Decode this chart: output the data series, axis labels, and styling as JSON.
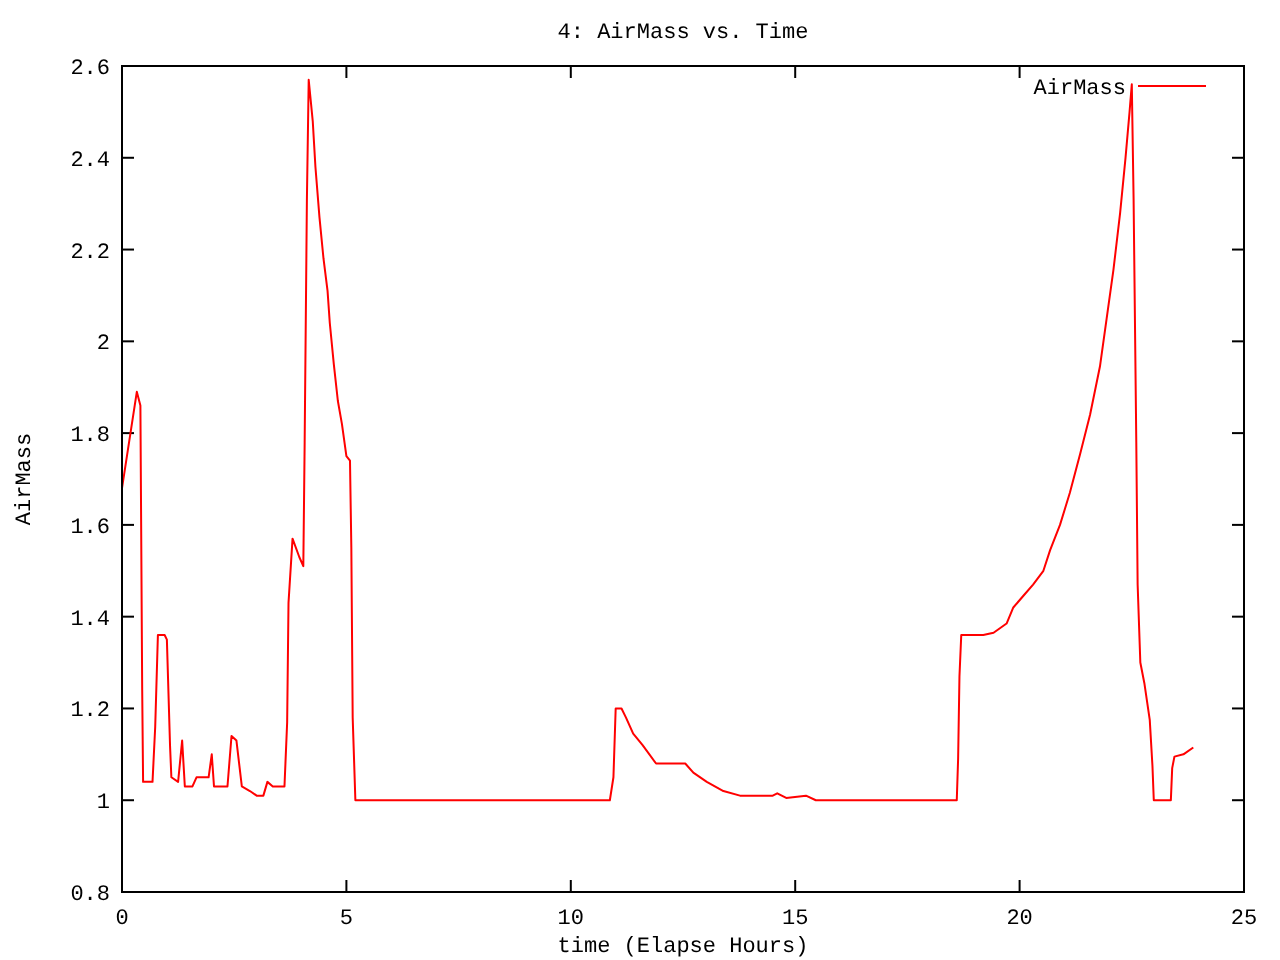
{
  "chart_data": {
    "type": "line",
    "title": "4: AirMass vs. Time",
    "xlabel": "time (Elapse Hours)",
    "ylabel": "AirMass",
    "xlim": [
      0,
      25
    ],
    "xticks": [
      0,
      5,
      10,
      15,
      20,
      25
    ],
    "ylim": [
      0.8,
      2.6
    ],
    "yticks": [
      0.8,
      1,
      1.2,
      1.4,
      1.6,
      1.8,
      2,
      2.2,
      2.4,
      2.6
    ],
    "grid": false,
    "legend": "top right",
    "marker": "none",
    "line_style": "solid",
    "series": [
      {
        "name": "AirMass",
        "color": "#ff0000",
        "x": [
          0,
          0.33,
          0.41,
          0.45,
          0.47,
          0.5,
          0.68,
          0.74,
          0.8,
          0.95,
          1.0,
          1.07,
          1.1,
          1.25,
          1.34,
          1.4,
          1.57,
          1.66,
          1.93,
          2.0,
          2.05,
          2.35,
          2.44,
          2.55,
          2.61,
          2.67,
          2.85,
          3.0,
          3.15,
          3.24,
          3.36,
          3.62,
          3.68,
          3.71,
          3.8,
          3.95,
          4.04,
          4.07,
          4.12,
          4.16,
          4.25,
          4.31,
          4.4,
          4.49,
          4.58,
          4.63,
          4.72,
          4.81,
          4.9,
          5.0,
          5.08,
          5.11,
          5.14,
          5.2,
          10.87,
          10.95,
          11.0,
          11.13,
          11.23,
          11.39,
          11.6,
          11.9,
          12.55,
          12.73,
          13.03,
          13.4,
          13.77,
          14.5,
          14.6,
          14.8,
          15.24,
          15.46,
          18.6,
          18.63,
          18.66,
          18.7,
          19.19,
          19.42,
          19.71,
          19.86,
          20.08,
          20.3,
          20.53,
          20.68,
          20.9,
          21.12,
          21.35,
          21.57,
          21.79,
          21.94,
          22.09,
          22.24,
          22.36,
          22.45,
          22.5,
          22.54,
          22.6,
          22.63,
          22.69,
          22.78,
          22.9,
          22.96,
          22.99,
          23.37,
          23.4,
          23.45,
          23.65,
          23.87
        ],
        "values": [
          1.68,
          1.89,
          1.86,
          1.24,
          1.04,
          1.04,
          1.04,
          1.16,
          1.36,
          1.36,
          1.35,
          1.12,
          1.05,
          1.04,
          1.13,
          1.03,
          1.03,
          1.05,
          1.05,
          1.1,
          1.03,
          1.03,
          1.14,
          1.13,
          1.08,
          1.03,
          1.02,
          1.01,
          1.01,
          1.04,
          1.03,
          1.03,
          1.17,
          1.43,
          1.57,
          1.53,
          1.51,
          1.78,
          2.31,
          2.57,
          2.48,
          2.38,
          2.27,
          2.18,
          2.11,
          2.04,
          1.95,
          1.87,
          1.82,
          1.75,
          1.74,
          1.55,
          1.18,
          1.0,
          1.0,
          1.05,
          1.2,
          1.2,
          1.18,
          1.145,
          1.12,
          1.08,
          1.08,
          1.06,
          1.04,
          1.02,
          1.01,
          1.01,
          1.015,
          1.005,
          1.01,
          1.0,
          1.0,
          1.09,
          1.27,
          1.36,
          1.36,
          1.365,
          1.385,
          1.42,
          1.445,
          1.47,
          1.5,
          1.545,
          1.6,
          1.67,
          1.755,
          1.84,
          1.945,
          2.05,
          2.155,
          2.28,
          2.4,
          2.5,
          2.56,
          2.31,
          1.78,
          1.47,
          1.3,
          1.255,
          1.175,
          1.075,
          1.0,
          1.0,
          1.07,
          1.095,
          1.1,
          1.115
        ]
      }
    ]
  }
}
